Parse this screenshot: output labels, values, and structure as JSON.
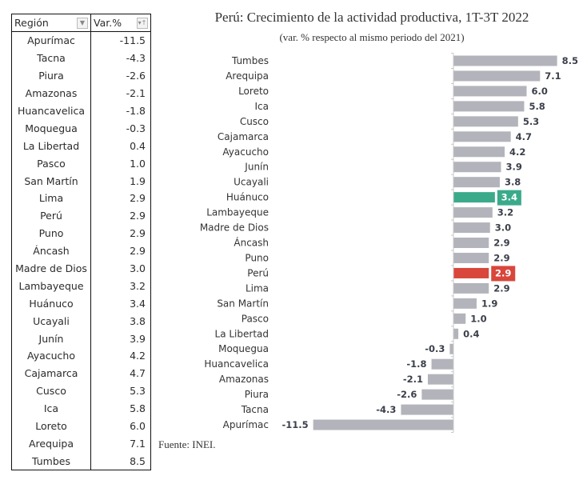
{
  "table": {
    "headers": [
      "Región",
      "Var.%"
    ],
    "header_icons": [
      "filter-dropdown-icon",
      "sort-filter-icon"
    ],
    "rows": [
      [
        "Apurímac",
        "-11.5"
      ],
      [
        "Tacna",
        "-4.3"
      ],
      [
        "Piura",
        "-2.6"
      ],
      [
        "Amazonas",
        "-2.1"
      ],
      [
        "Huancavelica",
        "-1.8"
      ],
      [
        "Moquegua",
        "-0.3"
      ],
      [
        "La Libertad",
        "0.4"
      ],
      [
        "Pasco",
        "1.0"
      ],
      [
        "San Martín",
        "1.9"
      ],
      [
        "Lima",
        "2.9"
      ],
      [
        "Perú",
        "2.9"
      ],
      [
        "Puno",
        "2.9"
      ],
      [
        "Áncash",
        "2.9"
      ],
      [
        "Madre de Dios",
        "3.0"
      ],
      [
        "Lambayeque",
        "3.2"
      ],
      [
        "Huánuco",
        "3.4"
      ],
      [
        "Ucayali",
        "3.8"
      ],
      [
        "Junín",
        "3.9"
      ],
      [
        "Ayacucho",
        "4.2"
      ],
      [
        "Cajamarca",
        "4.7"
      ],
      [
        "Cusco",
        "5.3"
      ],
      [
        "Ica",
        "5.8"
      ],
      [
        "Loreto",
        "6.0"
      ],
      [
        "Arequipa",
        "7.1"
      ],
      [
        "Tumbes",
        "8.5"
      ]
    ]
  },
  "source": "Fuente: INEI.",
  "colors": {
    "default": "#b3b4bb",
    "highlight": "#3aaa8a",
    "national": "#d9463b"
  },
  "chart_data": {
    "type": "bar",
    "orientation": "horizontal",
    "title": "Perú: Crecimiento de la actividad productiva, 1T-3T 2022",
    "subtitle": "(var. % respecto al mismo periodo del 2021)",
    "xlabel": "",
    "ylabel": "",
    "xlim": [
      -11.5,
      8.5
    ],
    "grid": false,
    "legend": "none",
    "categories": [
      "Tumbes",
      "Arequipa",
      "Loreto",
      "Ica",
      "Cusco",
      "Cajamarca",
      "Ayacucho",
      "Junín",
      "Ucayali",
      "Huánuco",
      "Lambayeque",
      "Madre de Dios",
      "Áncash",
      "Puno",
      "Perú",
      "Lima",
      "San Martín",
      "Pasco",
      "La Libertad",
      "Moquegua",
      "Huancavelica",
      "Amazonas",
      "Piura",
      "Tacna",
      "Apurímac"
    ],
    "values": [
      8.5,
      7.1,
      6.0,
      5.8,
      5.3,
      4.7,
      4.2,
      3.9,
      3.8,
      3.4,
      3.2,
      3.0,
      2.9,
      2.9,
      2.9,
      2.9,
      1.9,
      1.0,
      0.4,
      -0.3,
      -1.8,
      -2.1,
      -2.6,
      -4.3,
      -11.5
    ],
    "labels": [
      "8.5",
      "7.1",
      "6.0",
      "5.8",
      "5.3",
      "4.7",
      "4.2",
      "3.9",
      "3.8",
      "3.4",
      "3.2",
      "3.0",
      "2.9",
      "2.9",
      "2.9",
      "2.9",
      "1.9",
      "1.0",
      "0.4",
      "-0.3",
      "-1.8",
      "-2.1",
      "-2.6",
      "-4.3",
      "-11.5"
    ],
    "highlight": {
      "Huánuco": "highlight",
      "Perú": "national"
    }
  }
}
